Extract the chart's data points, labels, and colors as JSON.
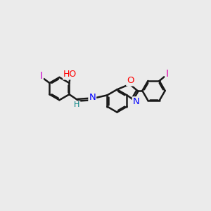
{
  "background_color": "#ebebeb",
  "bond_color": "#1a1a1a",
  "bond_width": 1.8,
  "dbo": 0.07,
  "atom_colors": {
    "N": "#0000ff",
    "O": "#ff0000",
    "I": "#cc00cc",
    "I2": "#dd00aa",
    "H": "#008080"
  },
  "fig_w": 3.0,
  "fig_h": 3.0,
  "dpi": 100,
  "xlim": [
    0,
    10
  ],
  "ylim": [
    0,
    10
  ]
}
